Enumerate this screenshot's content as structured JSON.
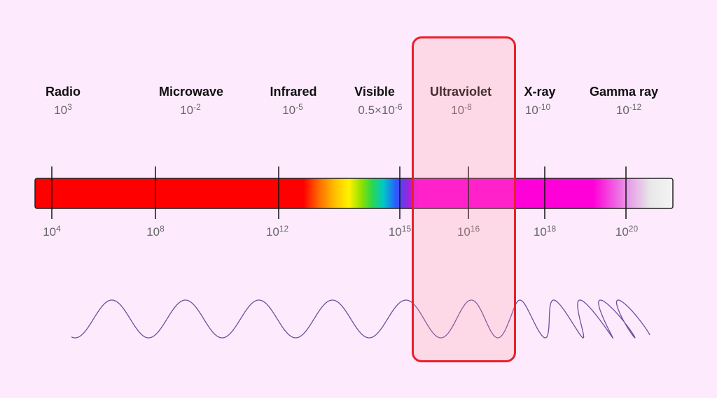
{
  "bands": [
    {
      "name": "Radio",
      "wavelength": {
        "base": "10",
        "exp": "3"
      }
    },
    {
      "name": "Microwave",
      "wavelength": {
        "base": "10",
        "exp": "-2"
      }
    },
    {
      "name": "Infrared",
      "wavelength": {
        "base": "10",
        "exp": "-5"
      }
    },
    {
      "name": "Visible",
      "wavelength": {
        "base": "0.5×10",
        "exp": "-6"
      }
    },
    {
      "name": "Ultraviolet",
      "wavelength": {
        "base": "10",
        "exp": "-8"
      }
    },
    {
      "name": "X-ray",
      "wavelength": {
        "base": "10",
        "exp": "-10"
      }
    },
    {
      "name": "Gamma ray",
      "wavelength": {
        "base": "10",
        "exp": "-12"
      }
    }
  ],
  "frequency_ticks": [
    {
      "base": "10",
      "exp": "4"
    },
    {
      "base": "10",
      "exp": "8"
    },
    {
      "base": "10",
      "exp": "12"
    },
    {
      "base": "10",
      "exp": "15"
    },
    {
      "base": "10",
      "exp": "16"
    },
    {
      "base": "10",
      "exp": "18"
    },
    {
      "base": "10",
      "exp": "20"
    }
  ],
  "highlighted_band": "Ultraviolet",
  "colors": {
    "background": "#FDEBFD",
    "highlight_border": "#E8202A",
    "wave": "#6B4F9E",
    "tick": "#111111"
  }
}
